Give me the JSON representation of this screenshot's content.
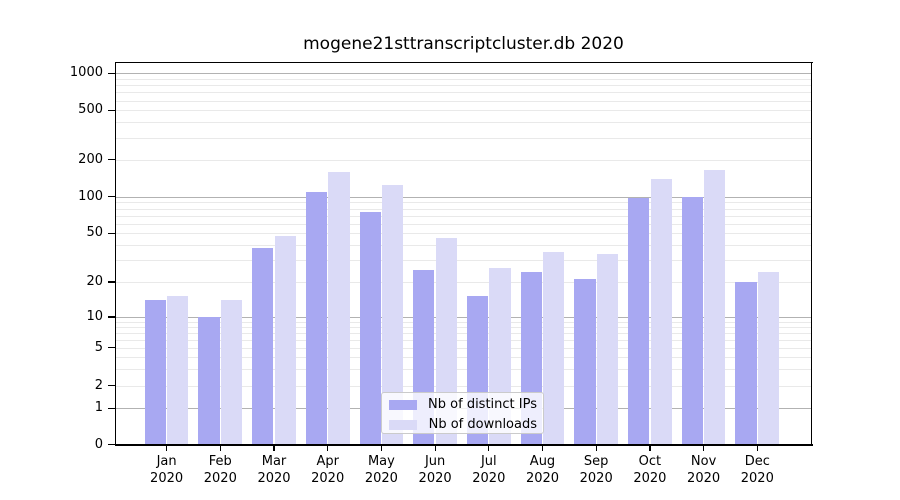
{
  "title": "mogene21sttranscriptcluster.db 2020",
  "legend": {
    "items": [
      {
        "label": "Nb of distinct IPs",
        "color": "#a8a8f2"
      },
      {
        "label": "Nb of downloads",
        "color": "#dadaf7"
      }
    ]
  },
  "chart_data": {
    "type": "bar",
    "title": "mogene21sttranscriptcluster.db 2020",
    "categories": [
      "Jan",
      "Feb",
      "Mar",
      "Apr",
      "May",
      "Jun",
      "Jul",
      "Aug",
      "Sep",
      "Oct",
      "Nov",
      "Dec"
    ],
    "year_label": "2020",
    "series": [
      {
        "name": "Nb of distinct IPs",
        "color": "#a8a8f2",
        "values": [
          14,
          10,
          38,
          110,
          75,
          25,
          15,
          24,
          21,
          97,
          100,
          20
        ]
      },
      {
        "name": "Nb of downloads",
        "color": "#dadaf7",
        "values": [
          15,
          14,
          48,
          160,
          125,
          46,
          26,
          35,
          34,
          139,
          165,
          24
        ]
      }
    ],
    "yscale": "pseudo-log with 0 baseline",
    "yticks": [
      0,
      1,
      2,
      5,
      10,
      20,
      50,
      100,
      200,
      500,
      1000
    ],
    "ylim": [
      0,
      1000
    ],
    "xlabel": "",
    "ylabel": "",
    "grid": "horizontal major + minor",
    "legend_position": "inside lower-center"
  },
  "colors": {
    "background": "#ffffff",
    "axis": "#000000",
    "grid_major": "#b2b2b2",
    "grid_minor": "#e9e9e9",
    "legend_border": "#cbcbcb"
  }
}
